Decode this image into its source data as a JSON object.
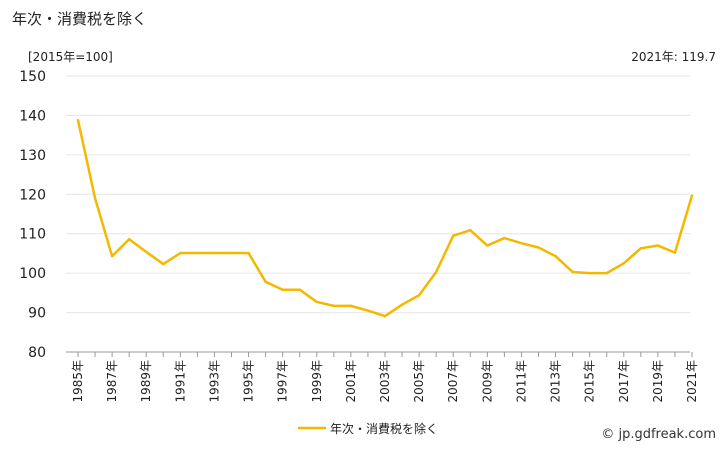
{
  "title": "年次・消費税を除く",
  "unit_label": "[2015年=100]",
  "latest_label": "2021年: 119.7",
  "credit": "© jp.gdfreak.com",
  "chart_data": {
    "type": "line",
    "title": "年次・消費税を除く",
    "ylabel": "[2015年=100]",
    "ylim": [
      80,
      150
    ],
    "yticks": [
      80,
      90,
      100,
      110,
      120,
      130,
      140,
      150
    ],
    "x": [
      1985,
      1986,
      1987,
      1988,
      1989,
      1990,
      1991,
      1992,
      1993,
      1994,
      1995,
      1996,
      1997,
      1998,
      1999,
      2000,
      2001,
      2002,
      2003,
      2004,
      2005,
      2006,
      2007,
      2008,
      2009,
      2010,
      2011,
      2012,
      2013,
      2014,
      2015,
      2016,
      2017,
      2018,
      2019,
      2020,
      2021
    ],
    "x_tick_labels": [
      "1985年",
      "1987年",
      "1989年",
      "1991年",
      "1993年",
      "1995年",
      "1997年",
      "1999年",
      "2001年",
      "2003年",
      "2005年",
      "2007年",
      "2009年",
      "2011年",
      "2013年",
      "2015年",
      "2017年",
      "2019年",
      "2021年"
    ],
    "series": [
      {
        "name": "年次・消費税を除く",
        "color": "#f5b800",
        "values": [
          138.8,
          119.0,
          104.3,
          108.6,
          105.4,
          102.3,
          105.1,
          105.1,
          105.1,
          105.1,
          105.1,
          97.8,
          95.8,
          95.8,
          92.7,
          91.7,
          91.7,
          90.5,
          89.1,
          92.0,
          94.4,
          100.3,
          109.5,
          110.9,
          107.0,
          108.9,
          107.6,
          106.5,
          104.3,
          100.3,
          100.0,
          100.0,
          102.5,
          106.3,
          107.0,
          105.2,
          119.7
        ]
      }
    ],
    "grid": "horizontal",
    "legend": "bottom-center"
  }
}
